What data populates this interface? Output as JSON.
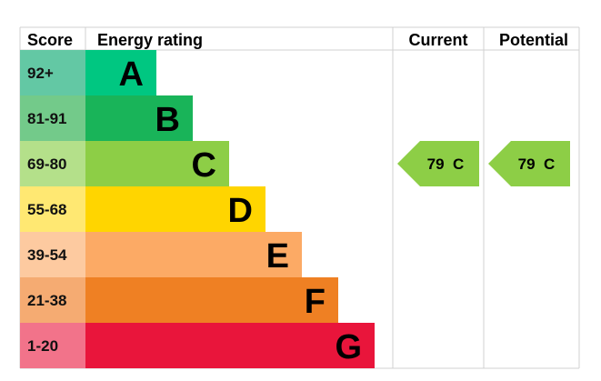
{
  "chart_data": {
    "type": "bar",
    "headers": {
      "score": "Score",
      "rating": "Energy rating",
      "current": "Current",
      "potential": "Potential"
    },
    "bands": [
      {
        "score": "92+",
        "letter": "A",
        "color": "#00c781",
        "light": "#63c8a4"
      },
      {
        "score": "81-91",
        "letter": "B",
        "color": "#19b459",
        "light": "#73ca8a"
      },
      {
        "score": "69-80",
        "letter": "C",
        "color": "#8dce46",
        "light": "#b4e08a"
      },
      {
        "score": "55-68",
        "letter": "D",
        "color": "#ffd500",
        "light": "#ffe872"
      },
      {
        "score": "39-54",
        "letter": "E",
        "color": "#fcaa65",
        "light": "#fdcaa0"
      },
      {
        "score": "21-38",
        "letter": "F",
        "color": "#ef8023",
        "light": "#f5ab72"
      },
      {
        "score": "1-20",
        "letter": "G",
        "color": "#e9153b",
        "light": "#f2738a"
      }
    ],
    "current": {
      "value": 79,
      "band": "C",
      "label": "79  C",
      "color": "#8dce46"
    },
    "potential": {
      "value": 79,
      "band": "C",
      "label": "79  C",
      "color": "#8dce46"
    }
  }
}
